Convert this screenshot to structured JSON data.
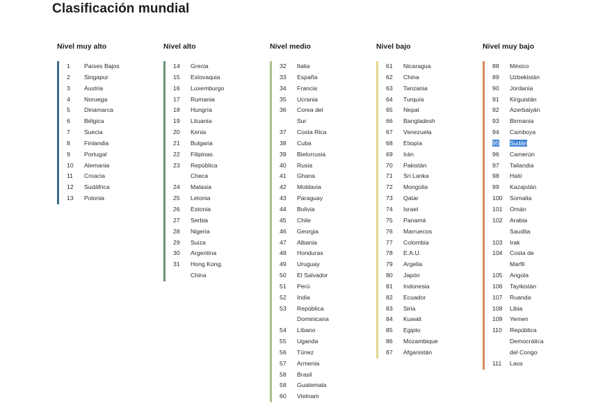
{
  "title": "Clasificación mundial",
  "colors": {
    "muy_alto": "#3a6b8c",
    "alto": "#6b8f78",
    "medio": "#a9c08a",
    "bajo": "#e3d890",
    "muy_bajo": "#d88a5e",
    "selection": "#3d83d6"
  },
  "columns": [
    {
      "heading": "Nivel muy alto",
      "rows": [
        {
          "rank": "1",
          "lines": [
            "Países Bajos"
          ]
        },
        {
          "rank": "2",
          "lines": [
            "Singapur"
          ]
        },
        {
          "rank": "3",
          "lines": [
            "Austria"
          ]
        },
        {
          "rank": "4",
          "lines": [
            "Noruega"
          ]
        },
        {
          "rank": "5",
          "lines": [
            "Dinamarca"
          ]
        },
        {
          "rank": "6",
          "lines": [
            "Bélgica"
          ]
        },
        {
          "rank": "7",
          "lines": [
            "Suecia"
          ]
        },
        {
          "rank": "8",
          "lines": [
            "Finlandia"
          ]
        },
        {
          "rank": "9",
          "lines": [
            "Portugal"
          ]
        },
        {
          "rank": "10",
          "lines": [
            "Alemania"
          ]
        },
        {
          "rank": "11",
          "lines": [
            "Croacia"
          ]
        },
        {
          "rank": "12",
          "lines": [
            "Sudáfrica"
          ]
        },
        {
          "rank": "13",
          "lines": [
            "Polonia"
          ]
        }
      ]
    },
    {
      "heading": "Nivel alto",
      "rows": [
        {
          "rank": "14",
          "lines": [
            "Grecia"
          ]
        },
        {
          "rank": "15",
          "lines": [
            "Eslovaquia"
          ]
        },
        {
          "rank": "16",
          "lines": [
            "Luxemburgo"
          ]
        },
        {
          "rank": "17",
          "lines": [
            "Rumania"
          ]
        },
        {
          "rank": "18",
          "lines": [
            "Hungría"
          ]
        },
        {
          "rank": "19",
          "lines": [
            "Lituania"
          ]
        },
        {
          "rank": "20",
          "lines": [
            "Kenia"
          ]
        },
        {
          "rank": "21",
          "lines": [
            "Bulgaria"
          ]
        },
        {
          "rank": "22",
          "lines": [
            "Filipinas"
          ]
        },
        {
          "rank": "23",
          "lines": [
            "República",
            "Checa"
          ]
        },
        {
          "rank": "24",
          "lines": [
            "Malasia"
          ]
        },
        {
          "rank": "25",
          "lines": [
            "Letonia"
          ]
        },
        {
          "rank": "26",
          "lines": [
            "Estonia"
          ]
        },
        {
          "rank": "27",
          "lines": [
            "Serbia"
          ]
        },
        {
          "rank": "28",
          "lines": [
            "Nigeria"
          ]
        },
        {
          "rank": "29",
          "lines": [
            "Suiza"
          ]
        },
        {
          "rank": "30",
          "lines": [
            "Argentina"
          ]
        },
        {
          "rank": "31",
          "lines": [
            "Hong Kong,",
            "China"
          ]
        }
      ]
    },
    {
      "heading": "Nivel medio",
      "rows": [
        {
          "rank": "32",
          "lines": [
            "Italia"
          ]
        },
        {
          "rank": "33",
          "lines": [
            "España"
          ]
        },
        {
          "rank": "34",
          "lines": [
            "Francia"
          ]
        },
        {
          "rank": "35",
          "lines": [
            "Ucrania"
          ]
        },
        {
          "rank": "36",
          "lines": [
            "Corea del",
            "Sur"
          ]
        },
        {
          "rank": "37",
          "lines": [
            "Costa Rica"
          ]
        },
        {
          "rank": "38",
          "lines": [
            "Cuba"
          ]
        },
        {
          "rank": "39",
          "lines": [
            "Bielorrusia"
          ]
        },
        {
          "rank": "40",
          "lines": [
            "Rusia"
          ]
        },
        {
          "rank": "41",
          "lines": [
            "Ghana"
          ]
        },
        {
          "rank": "42",
          "lines": [
            "Moldavia"
          ]
        },
        {
          "rank": "43",
          "lines": [
            "Paraguay"
          ]
        },
        {
          "rank": "44",
          "lines": [
            "Bolivia"
          ]
        },
        {
          "rank": "45",
          "lines": [
            "Chile"
          ]
        },
        {
          "rank": "46",
          "lines": [
            "Georgia"
          ]
        },
        {
          "rank": "47",
          "lines": [
            "Albania"
          ]
        },
        {
          "rank": "48",
          "lines": [
            "Honduras"
          ]
        },
        {
          "rank": "49",
          "lines": [
            "Uruguay"
          ]
        },
        {
          "rank": "50",
          "lines": [
            "El Salvador"
          ]
        },
        {
          "rank": "51",
          "lines": [
            "Perú"
          ]
        },
        {
          "rank": "52",
          "lines": [
            "India"
          ]
        },
        {
          "rank": "53",
          "lines": [
            "República",
            "Dominicana"
          ]
        },
        {
          "rank": "54",
          "lines": [
            "Líbano"
          ]
        },
        {
          "rank": "55",
          "lines": [
            "Uganda"
          ]
        },
        {
          "rank": "56",
          "lines": [
            "Túnez"
          ]
        },
        {
          "rank": "57",
          "lines": [
            "Armenia"
          ]
        },
        {
          "rank": "58",
          "lines": [
            "Brasil"
          ]
        },
        {
          "rank": "58",
          "lines": [
            "Guatemala"
          ]
        },
        {
          "rank": "60",
          "lines": [
            "Vietnam"
          ]
        }
      ]
    },
    {
      "heading": "Nivel bajo",
      "rows": [
        {
          "rank": "61",
          "lines": [
            "Nicaragua"
          ]
        },
        {
          "rank": "62",
          "lines": [
            "China"
          ]
        },
        {
          "rank": "63",
          "lines": [
            "Tanzania"
          ]
        },
        {
          "rank": "64",
          "lines": [
            "Turquía"
          ]
        },
        {
          "rank": "65",
          "lines": [
            "Nepal"
          ]
        },
        {
          "rank": "66",
          "lines": [
            "Bangladesh"
          ]
        },
        {
          "rank": "67",
          "lines": [
            "Venezuela"
          ]
        },
        {
          "rank": "68",
          "lines": [
            "Etiopía"
          ]
        },
        {
          "rank": "69",
          "lines": [
            "Irán"
          ]
        },
        {
          "rank": "70",
          "lines": [
            "Pakistán"
          ]
        },
        {
          "rank": "71",
          "lines": [
            "Sri Lanka"
          ]
        },
        {
          "rank": "72",
          "lines": [
            "Mongolia"
          ]
        },
        {
          "rank": "73",
          "lines": [
            "Qatar"
          ]
        },
        {
          "rank": "74",
          "lines": [
            "Israel"
          ]
        },
        {
          "rank": "75",
          "lines": [
            "Panamá"
          ]
        },
        {
          "rank": "76",
          "lines": [
            "Marruecos"
          ]
        },
        {
          "rank": "77",
          "lines": [
            "Colombia"
          ]
        },
        {
          "rank": "78",
          "lines": [
            "E.A.U."
          ]
        },
        {
          "rank": "79",
          "lines": [
            "Argelia"
          ]
        },
        {
          "rank": "80",
          "lines": [
            "Japón"
          ]
        },
        {
          "rank": "81",
          "lines": [
            "Indonesia"
          ]
        },
        {
          "rank": "82",
          "lines": [
            "Ecuador"
          ]
        },
        {
          "rank": "83",
          "lines": [
            "Siria"
          ]
        },
        {
          "rank": "84",
          "lines": [
            "Kuwait"
          ]
        },
        {
          "rank": "85",
          "lines": [
            "Egipto"
          ]
        },
        {
          "rank": "86",
          "lines": [
            "Mozambique"
          ]
        },
        {
          "rank": "87",
          "lines": [
            "Afganistán"
          ]
        }
      ]
    },
    {
      "heading": "Nivel muy bajo",
      "rows": [
        {
          "rank": "88",
          "lines": [
            "México"
          ]
        },
        {
          "rank": "89",
          "lines": [
            "Uzbekistán"
          ]
        },
        {
          "rank": "90",
          "lines": [
            "Jordania"
          ]
        },
        {
          "rank": "91",
          "lines": [
            "Kirguistán"
          ]
        },
        {
          "rank": "92",
          "lines": [
            "Azerbaiyán"
          ]
        },
        {
          "rank": "93",
          "lines": [
            "Birmania"
          ]
        },
        {
          "rank": "94",
          "lines": [
            "Camboya"
          ]
        },
        {
          "rank": "95",
          "lines": [
            "Sudán"
          ],
          "selected": true
        },
        {
          "rank": "96",
          "lines": [
            "Camerún"
          ]
        },
        {
          "rank": "97",
          "lines": [
            "Tailandia"
          ]
        },
        {
          "rank": "98",
          "lines": [
            "Haití"
          ]
        },
        {
          "rank": "99",
          "lines": [
            "Kazajstán"
          ]
        },
        {
          "rank": "100",
          "lines": [
            "Somalia"
          ]
        },
        {
          "rank": "101",
          "lines": [
            "Omán"
          ]
        },
        {
          "rank": "102",
          "lines": [
            "Arabia",
            "Saudita"
          ]
        },
        {
          "rank": "103",
          "lines": [
            "Irak"
          ]
        },
        {
          "rank": "104",
          "lines": [
            "Costa de",
            "Marfil"
          ]
        },
        {
          "rank": "105",
          "lines": [
            "Angola"
          ]
        },
        {
          "rank": "106",
          "lines": [
            "Tayikistán"
          ]
        },
        {
          "rank": "107",
          "lines": [
            "Ruanda"
          ]
        },
        {
          "rank": "108",
          "lines": [
            "Libia"
          ]
        },
        {
          "rank": "109",
          "lines": [
            "Yemen"
          ]
        },
        {
          "rank": "110",
          "lines": [
            "República",
            "Democrática",
            "del Congo"
          ]
        },
        {
          "rank": "111",
          "lines": [
            "Laos"
          ]
        }
      ]
    }
  ]
}
